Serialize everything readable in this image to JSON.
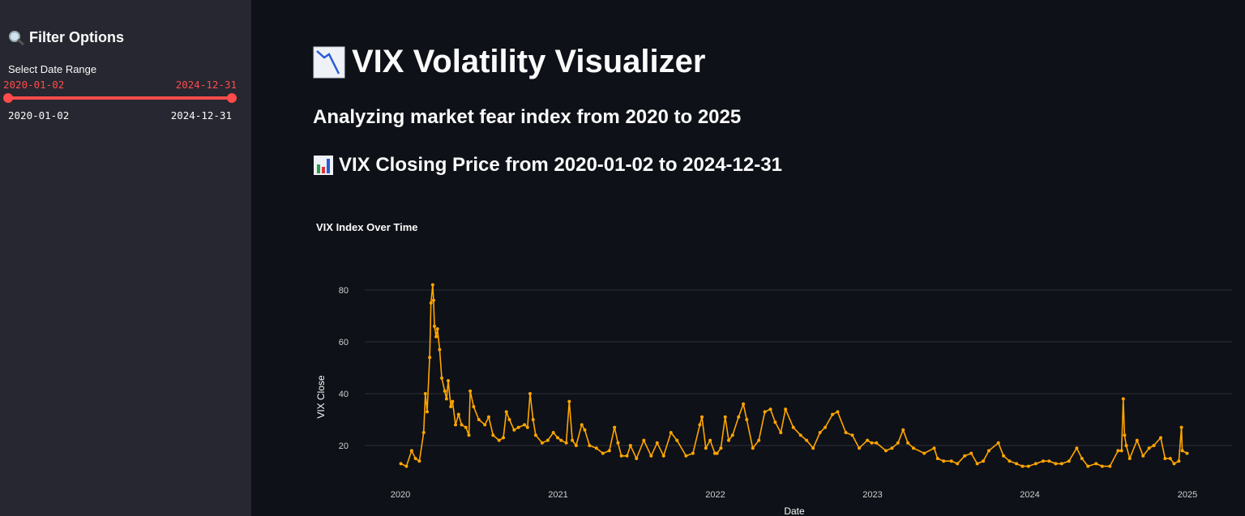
{
  "sidebar": {
    "title": "Filter Options",
    "title_icon": "magnifier-icon",
    "slider_label": "Select Date Range",
    "range_start": "2020-01-02",
    "range_end": "2024-12-31",
    "min": "2020-01-02",
    "max": "2024-12-31",
    "accent": "#ff4b4b"
  },
  "main": {
    "title": "VIX Volatility Visualizer",
    "title_icon": "chart-decreasing-icon",
    "subtitle": "Analyzing market fear index from 2020 to 2025",
    "section_heading": "VIX Closing Price from 2020-01-02 to 2024-12-31",
    "section_icon": "bar-chart-icon"
  },
  "chart_data": {
    "type": "line",
    "title": "VIX Index Over Time",
    "xlabel": "Date",
    "ylabel": "VIX Close",
    "color": "#ffa500",
    "x_ticks": [
      "2020",
      "2021",
      "2022",
      "2023",
      "2024",
      "2025"
    ],
    "y_ticks": [
      20,
      40,
      60,
      80
    ],
    "ylim": [
      0,
      86
    ],
    "xlim": [
      "2019-09-01",
      "2025-03-01"
    ],
    "grid": true,
    "points": [
      [
        "2020-01-02",
        13
      ],
      [
        "2020-01-15",
        12
      ],
      [
        "2020-01-27",
        18
      ],
      [
        "2020-02-05",
        15
      ],
      [
        "2020-02-14",
        14
      ],
      [
        "2020-02-24",
        25
      ],
      [
        "2020-02-28",
        40
      ],
      [
        "2020-03-03",
        33
      ],
      [
        "2020-03-09",
        54
      ],
      [
        "2020-03-12",
        75
      ],
      [
        "2020-03-16",
        82
      ],
      [
        "2020-03-18",
        76
      ],
      [
        "2020-03-20",
        66
      ],
      [
        "2020-03-24",
        62
      ],
      [
        "2020-03-27",
        65
      ],
      [
        "2020-04-01",
        57
      ],
      [
        "2020-04-06",
        46
      ],
      [
        "2020-04-13",
        41
      ],
      [
        "2020-04-17",
        38
      ],
      [
        "2020-04-21",
        45
      ],
      [
        "2020-04-27",
        35
      ],
      [
        "2020-05-01",
        37
      ],
      [
        "2020-05-08",
        28
      ],
      [
        "2020-05-15",
        32
      ],
      [
        "2020-05-22",
        28
      ],
      [
        "2020-06-01",
        27
      ],
      [
        "2020-06-08",
        24
      ],
      [
        "2020-06-11",
        41
      ],
      [
        "2020-06-19",
        35
      ],
      [
        "2020-07-01",
        30
      ],
      [
        "2020-07-15",
        28
      ],
      [
        "2020-07-24",
        31
      ],
      [
        "2020-08-03",
        24
      ],
      [
        "2020-08-17",
        22
      ],
      [
        "2020-08-27",
        23
      ],
      [
        "2020-09-03",
        33
      ],
      [
        "2020-09-10",
        30
      ],
      [
        "2020-09-21",
        26
      ],
      [
        "2020-10-01",
        27
      ],
      [
        "2020-10-15",
        28
      ],
      [
        "2020-10-22",
        27
      ],
      [
        "2020-10-28",
        40
      ],
      [
        "2020-11-04",
        30
      ],
      [
        "2020-11-10",
        24
      ],
      [
        "2020-11-25",
        21
      ],
      [
        "2020-12-08",
        22
      ],
      [
        "2020-12-21",
        25
      ],
      [
        "2020-12-31",
        23
      ],
      [
        "2021-01-08",
        22
      ],
      [
        "2021-01-20",
        21
      ],
      [
        "2021-01-27",
        37
      ],
      [
        "2021-02-03",
        22
      ],
      [
        "2021-02-12",
        20
      ],
      [
        "2021-02-25",
        28
      ],
      [
        "2021-03-04",
        26
      ],
      [
        "2021-03-15",
        20
      ],
      [
        "2021-03-31",
        19
      ],
      [
        "2021-04-15",
        17
      ],
      [
        "2021-04-30",
        18
      ],
      [
        "2021-05-12",
        27
      ],
      [
        "2021-05-20",
        21
      ],
      [
        "2021-05-28",
        16
      ],
      [
        "2021-06-10",
        16
      ],
      [
        "2021-06-18",
        20
      ],
      [
        "2021-07-02",
        15
      ],
      [
        "2021-07-19",
        22
      ],
      [
        "2021-08-05",
        16
      ],
      [
        "2021-08-19",
        21
      ],
      [
        "2021-09-03",
        16
      ],
      [
        "2021-09-20",
        25
      ],
      [
        "2021-10-04",
        22
      ],
      [
        "2021-10-25",
        16
      ],
      [
        "2021-11-10",
        17
      ],
      [
        "2021-11-26",
        28
      ],
      [
        "2021-12-01",
        31
      ],
      [
        "2021-12-10",
        19
      ],
      [
        "2021-12-20",
        22
      ],
      [
        "2021-12-31",
        17
      ],
      [
        "2022-01-05",
        17
      ],
      [
        "2022-01-14",
        19
      ],
      [
        "2022-01-24",
        31
      ],
      [
        "2022-02-01",
        22
      ],
      [
        "2022-02-10",
        24
      ],
      [
        "2022-02-24",
        31
      ],
      [
        "2022-03-07",
        36
      ],
      [
        "2022-03-15",
        30
      ],
      [
        "2022-03-29",
        19
      ],
      [
        "2022-04-12",
        22
      ],
      [
        "2022-04-26",
        33
      ],
      [
        "2022-05-09",
        34
      ],
      [
        "2022-05-20",
        29
      ],
      [
        "2022-06-02",
        25
      ],
      [
        "2022-06-13",
        34
      ],
      [
        "2022-07-01",
        27
      ],
      [
        "2022-07-18",
        24
      ],
      [
        "2022-08-01",
        22
      ],
      [
        "2022-08-16",
        19
      ],
      [
        "2022-09-01",
        25
      ],
      [
        "2022-09-13",
        27
      ],
      [
        "2022-09-30",
        32
      ],
      [
        "2022-10-12",
        33
      ],
      [
        "2022-10-31",
        25
      ],
      [
        "2022-11-15",
        24
      ],
      [
        "2022-12-01",
        19
      ],
      [
        "2022-12-20",
        22
      ],
      [
        "2022-12-30",
        21
      ],
      [
        "2023-01-10",
        21
      ],
      [
        "2023-02-01",
        18
      ],
      [
        "2023-02-15",
        19
      ],
      [
        "2023-03-01",
        21
      ],
      [
        "2023-03-13",
        26
      ],
      [
        "2023-03-24",
        21
      ],
      [
        "2023-04-06",
        19
      ],
      [
        "2023-05-01",
        17
      ],
      [
        "2023-05-24",
        19
      ],
      [
        "2023-06-01",
        15
      ],
      [
        "2023-06-15",
        14
      ],
      [
        "2023-07-03",
        14
      ],
      [
        "2023-07-17",
        13
      ],
      [
        "2023-08-03",
        16
      ],
      [
        "2023-08-18",
        17
      ],
      [
        "2023-09-01",
        13
      ],
      [
        "2023-09-15",
        14
      ],
      [
        "2023-09-28",
        18
      ],
      [
        "2023-10-20",
        21
      ],
      [
        "2023-11-01",
        16
      ],
      [
        "2023-11-15",
        14
      ],
      [
        "2023-12-01",
        13
      ],
      [
        "2023-12-15",
        12
      ],
      [
        "2023-12-29",
        12
      ],
      [
        "2024-01-15",
        13
      ],
      [
        "2024-02-01",
        14
      ],
      [
        "2024-02-15",
        14
      ],
      [
        "2024-03-01",
        13
      ],
      [
        "2024-03-15",
        13
      ],
      [
        "2024-04-01",
        14
      ],
      [
        "2024-04-19",
        19
      ],
      [
        "2024-05-01",
        15
      ],
      [
        "2024-05-15",
        12
      ],
      [
        "2024-06-03",
        13
      ],
      [
        "2024-06-17",
        12
      ],
      [
        "2024-07-05",
        12
      ],
      [
        "2024-07-24",
        18
      ],
      [
        "2024-08-01",
        18
      ],
      [
        "2024-08-05",
        38
      ],
      [
        "2024-08-08",
        24
      ],
      [
        "2024-08-12",
        20
      ],
      [
        "2024-08-20",
        15
      ],
      [
        "2024-09-06",
        22
      ],
      [
        "2024-09-20",
        16
      ],
      [
        "2024-10-04",
        19
      ],
      [
        "2024-10-15",
        20
      ],
      [
        "2024-10-31",
        23
      ],
      [
        "2024-11-10",
        15
      ],
      [
        "2024-11-22",
        15
      ],
      [
        "2024-12-01",
        13
      ],
      [
        "2024-12-12",
        14
      ],
      [
        "2024-12-18",
        27
      ],
      [
        "2024-12-20",
        18
      ],
      [
        "2024-12-31",
        17
      ]
    ]
  }
}
